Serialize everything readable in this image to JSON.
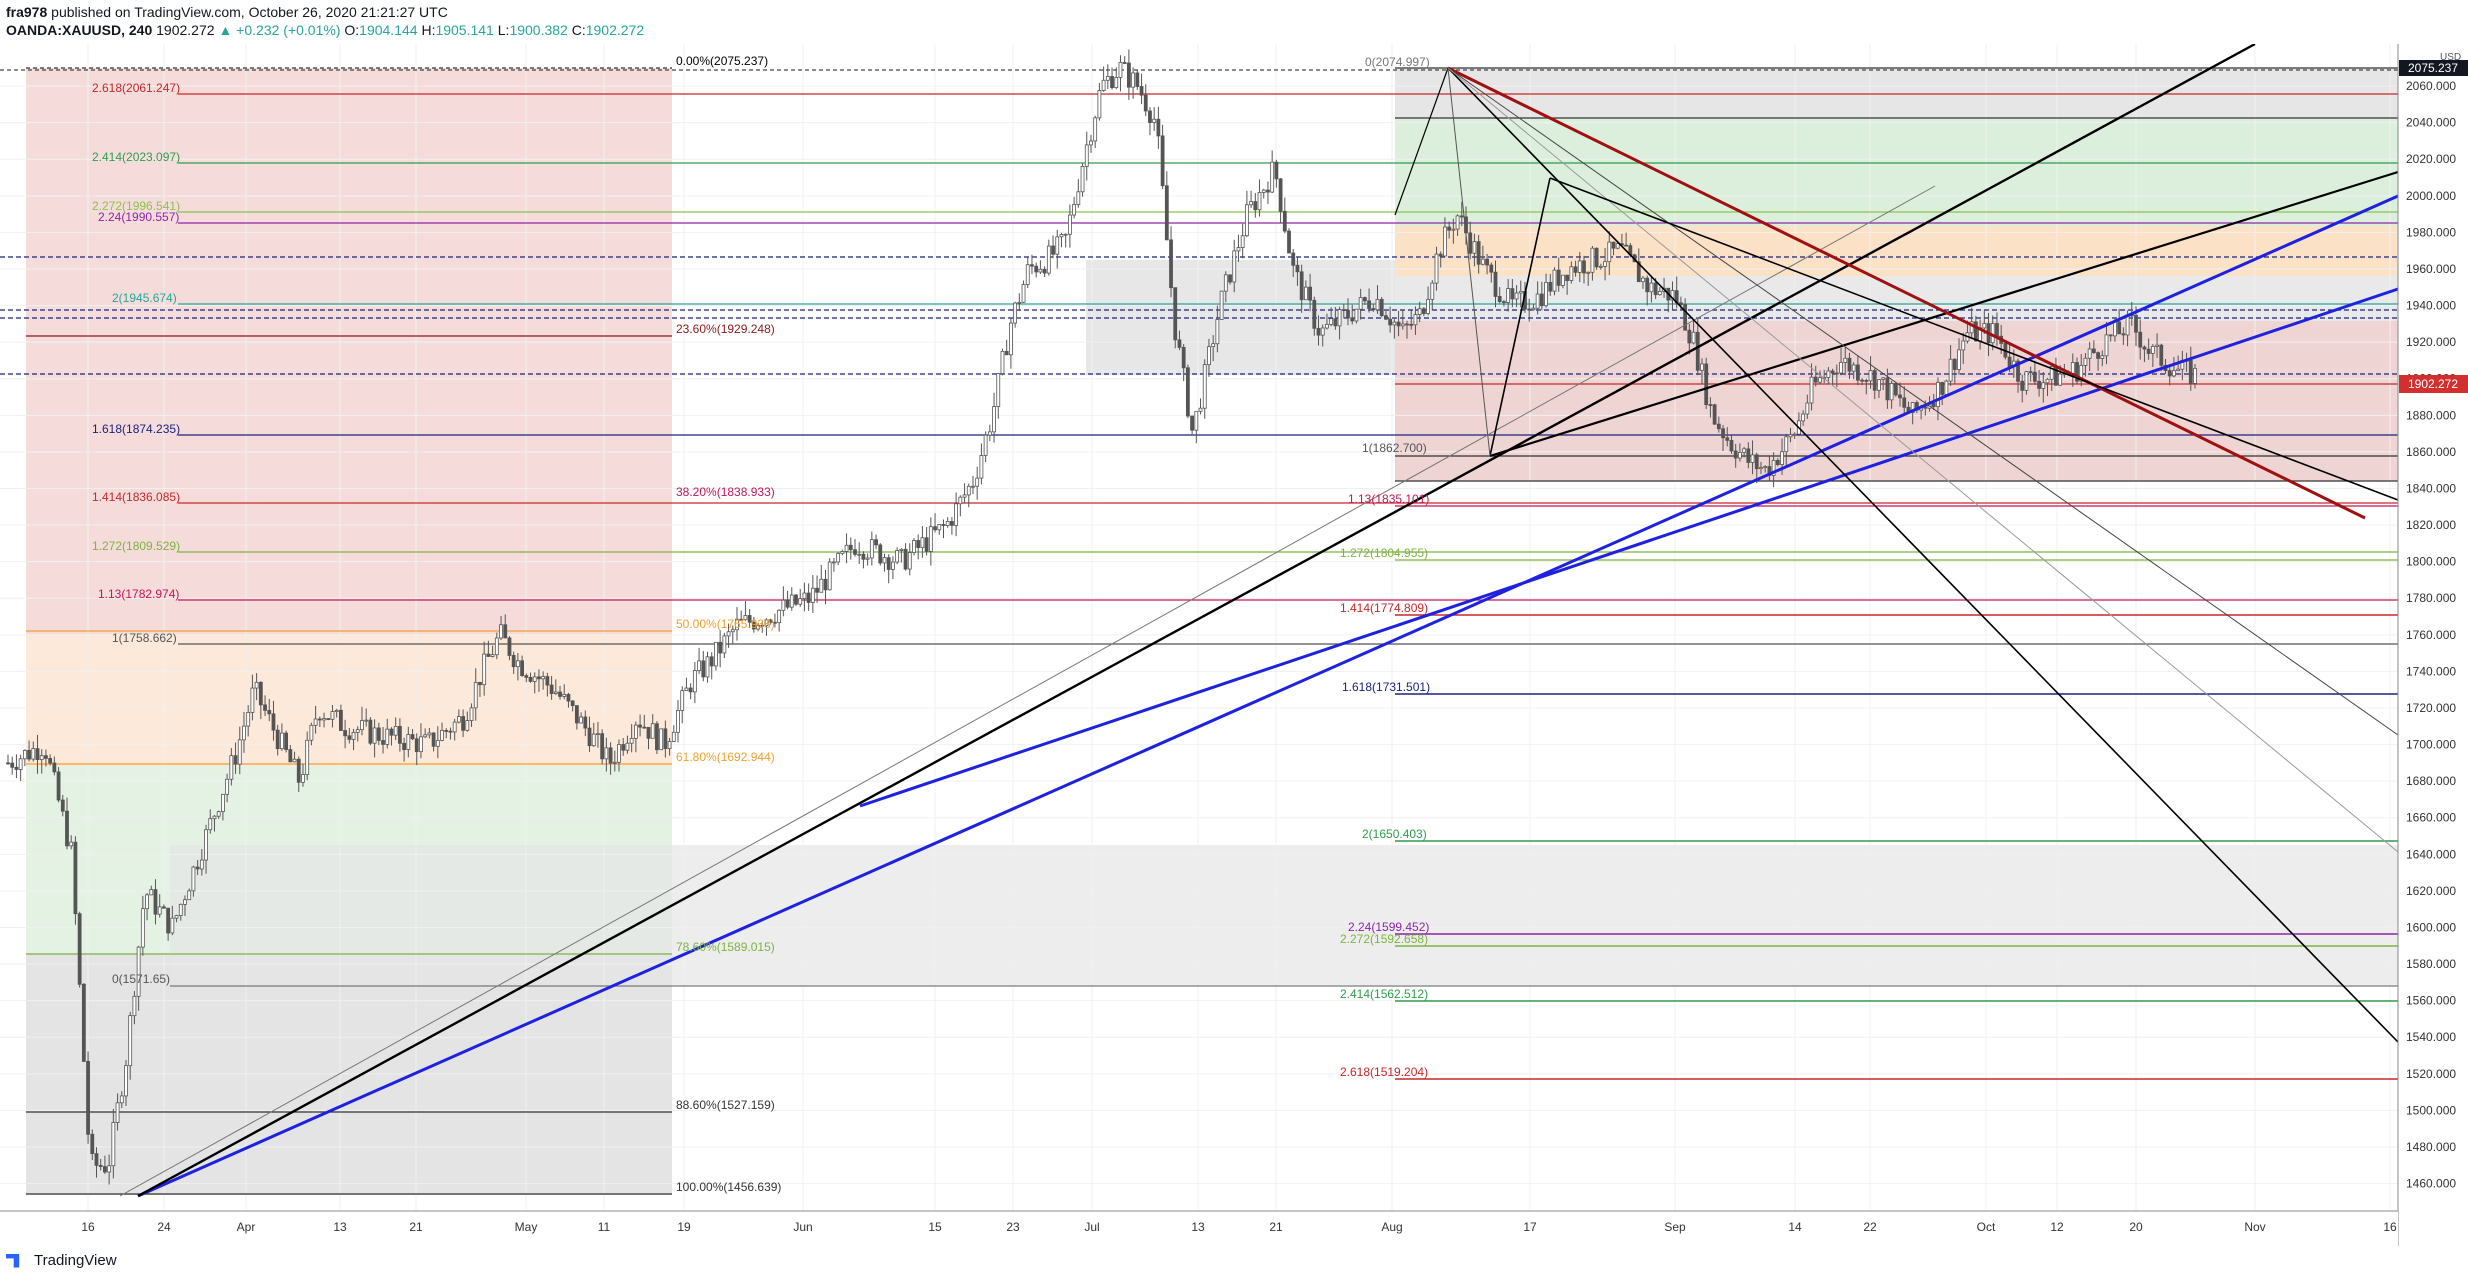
{
  "header": {
    "author": "fra978",
    "published": "published on TradingView.com, October 26, 2020 21:21:27 UTC",
    "symbol": "OANDA:XAUUSD, 240",
    "last": "1902.272",
    "change": "▲ +0.232 (+0.01%)",
    "o_label": "O:",
    "o": "1904.144",
    "h_label": "H:",
    "h": "1905.141",
    "l_label": "L:",
    "l": "1900.382",
    "c_label": "C:",
    "c": "1902.272"
  },
  "footer": {
    "brand": "TradingView"
  },
  "colors": {
    "candle": "#555555",
    "blue_trend": "#1e22e0",
    "red_trend": "#a01010",
    "black_trend": "#000000",
    "price_tag": "#d32f2f",
    "fib_red": "#c62828",
    "fib_green": "#2e9e4a",
    "fib_purple": "#8e24aa",
    "fib_blue": "#1a237e",
    "fib_orange": "#f0a030"
  },
  "chart_data": {
    "type": "candlestick",
    "currency_label": "USD",
    "current_price": "1902.272",
    "top_price": "2075.237",
    "ylim": [
      1445,
      2083
    ],
    "y_ticks": [
      "2060.000",
      "2040.000",
      "2020.000",
      "2000.000",
      "1980.000",
      "1960.000",
      "1940.000",
      "1920.000",
      "1900.000",
      "1880.000",
      "1860.000",
      "1840.000",
      "1820.000",
      "1800.000",
      "1780.000",
      "1760.000",
      "1740.000",
      "1720.000",
      "1700.000",
      "1680.000",
      "1660.000",
      "1640.000",
      "1620.000",
      "1600.000",
      "1580.000",
      "1560.000",
      "1540.000",
      "1520.000",
      "1500.000",
      "1480.000",
      "1460.000"
    ],
    "x_ticks": [
      "16",
      "24",
      "Apr",
      "13",
      "21",
      "May",
      "11",
      "19",
      "Jun",
      "15",
      "23",
      "Jul",
      "13",
      "21",
      "Aug",
      "17",
      "Sep",
      "14",
      "22",
      "Oct",
      "12",
      "20",
      "Nov",
      "16"
    ],
    "price_path": [
      [
        0,
        1690
      ],
      [
        8,
        1700
      ],
      [
        14,
        1640
      ],
      [
        18,
        1470
      ],
      [
        22,
        1470
      ],
      [
        26,
        1530
      ],
      [
        30,
        1620
      ],
      [
        36,
        1600
      ],
      [
        42,
        1640
      ],
      [
        50,
        1695
      ],
      [
        54,
        1730
      ],
      [
        60,
        1700
      ],
      [
        64,
        1680
      ],
      [
        68,
        1720
      ],
      [
        74,
        1710
      ],
      [
        82,
        1705
      ],
      [
        92,
        1700
      ],
      [
        100,
        1715
      ],
      [
        104,
        1740
      ],
      [
        108,
        1760
      ],
      [
        112,
        1745
      ],
      [
        120,
        1730
      ],
      [
        128,
        1705
      ],
      [
        132,
        1690
      ],
      [
        138,
        1715
      ],
      [
        144,
        1700
      ],
      [
        150,
        1735
      ],
      [
        154,
        1745
      ],
      [
        160,
        1765
      ],
      [
        166,
        1770
      ],
      [
        176,
        1780
      ],
      [
        186,
        1810
      ],
      [
        196,
        1800
      ],
      [
        206,
        1820
      ],
      [
        212,
        1845
      ],
      [
        216,
        1880
      ],
      [
        220,
        1930
      ],
      [
        224,
        1960
      ],
      [
        228,
        1965
      ],
      [
        232,
        1975
      ],
      [
        236,
        2020
      ],
      [
        240,
        2060
      ],
      [
        244,
        2070
      ],
      [
        248,
        2060
      ],
      [
        252,
        2040
      ],
      [
        256,
        1930
      ],
      [
        260,
        1870
      ],
      [
        266,
        1940
      ],
      [
        272,
        1990
      ],
      [
        278,
        2015
      ],
      [
        282,
        1960
      ],
      [
        288,
        1925
      ],
      [
        294,
        1935
      ],
      [
        300,
        1945
      ],
      [
        306,
        1925
      ],
      [
        310,
        1935
      ],
      [
        314,
        1970
      ],
      [
        318,
        1990
      ],
      [
        324,
        1960
      ],
      [
        330,
        1940
      ],
      [
        336,
        1945
      ],
      [
        342,
        1960
      ],
      [
        348,
        1965
      ],
      [
        354,
        1970
      ],
      [
        360,
        1950
      ],
      [
        366,
        1945
      ],
      [
        370,
        1920
      ],
      [
        374,
        1880
      ],
      [
        378,
        1865
      ],
      [
        382,
        1855
      ],
      [
        386,
        1850
      ],
      [
        392,
        1870
      ],
      [
        396,
        1895
      ],
      [
        402,
        1910
      ],
      [
        410,
        1900
      ],
      [
        418,
        1880
      ],
      [
        424,
        1895
      ],
      [
        430,
        1925
      ],
      [
        436,
        1925
      ],
      [
        442,
        1900
      ],
      [
        448,
        1900
      ],
      [
        454,
        1905
      ],
      [
        460,
        1920
      ],
      [
        466,
        1930
      ],
      [
        470,
        1915
      ],
      [
        476,
        1905
      ],
      [
        480,
        1902
      ]
    ]
  },
  "fib_labels": {
    "l1": "0.00%(2075.237)",
    "l2": "2.618(2061.247)",
    "l3": "2.414(2023.097)",
    "l4": "2.272(1996.541)",
    "l5": "2.24(1990.557)",
    "l6": "2(1945.674)",
    "l7": "23.60%(1929.248)",
    "l8": "1.618(1874.235)",
    "l9": "1.414(1836.085)",
    "l10": "38.20%(1838.933)",
    "l11": "1.272(1809.529)",
    "l12": "1.13(1782.974)",
    "l13": "1(1758.662)",
    "l14": "50.00%(1765.938)",
    "l15": "61.80%(1692.944)",
    "l16": "0(1571.65)",
    "l17": "78.60%(1589.015)",
    "l18": "88.60%(1527.159)",
    "l19": "100.00%(1456.639)",
    "r1": "0(2074.997)",
    "r2": "1(1862.700)",
    "r3": "1.13(1835.101)",
    "r4": "1.272(1804.955)",
    "r5": "1.414(1774.809)",
    "r6": "1.618(1731.501)",
    "r7": "2(1650.403)",
    "r8": "2.24(1599.452)",
    "r9": "2.272(1592.658)",
    "r10": "2.414(1562.512)",
    "r11": "2.618(1519.204)"
  }
}
